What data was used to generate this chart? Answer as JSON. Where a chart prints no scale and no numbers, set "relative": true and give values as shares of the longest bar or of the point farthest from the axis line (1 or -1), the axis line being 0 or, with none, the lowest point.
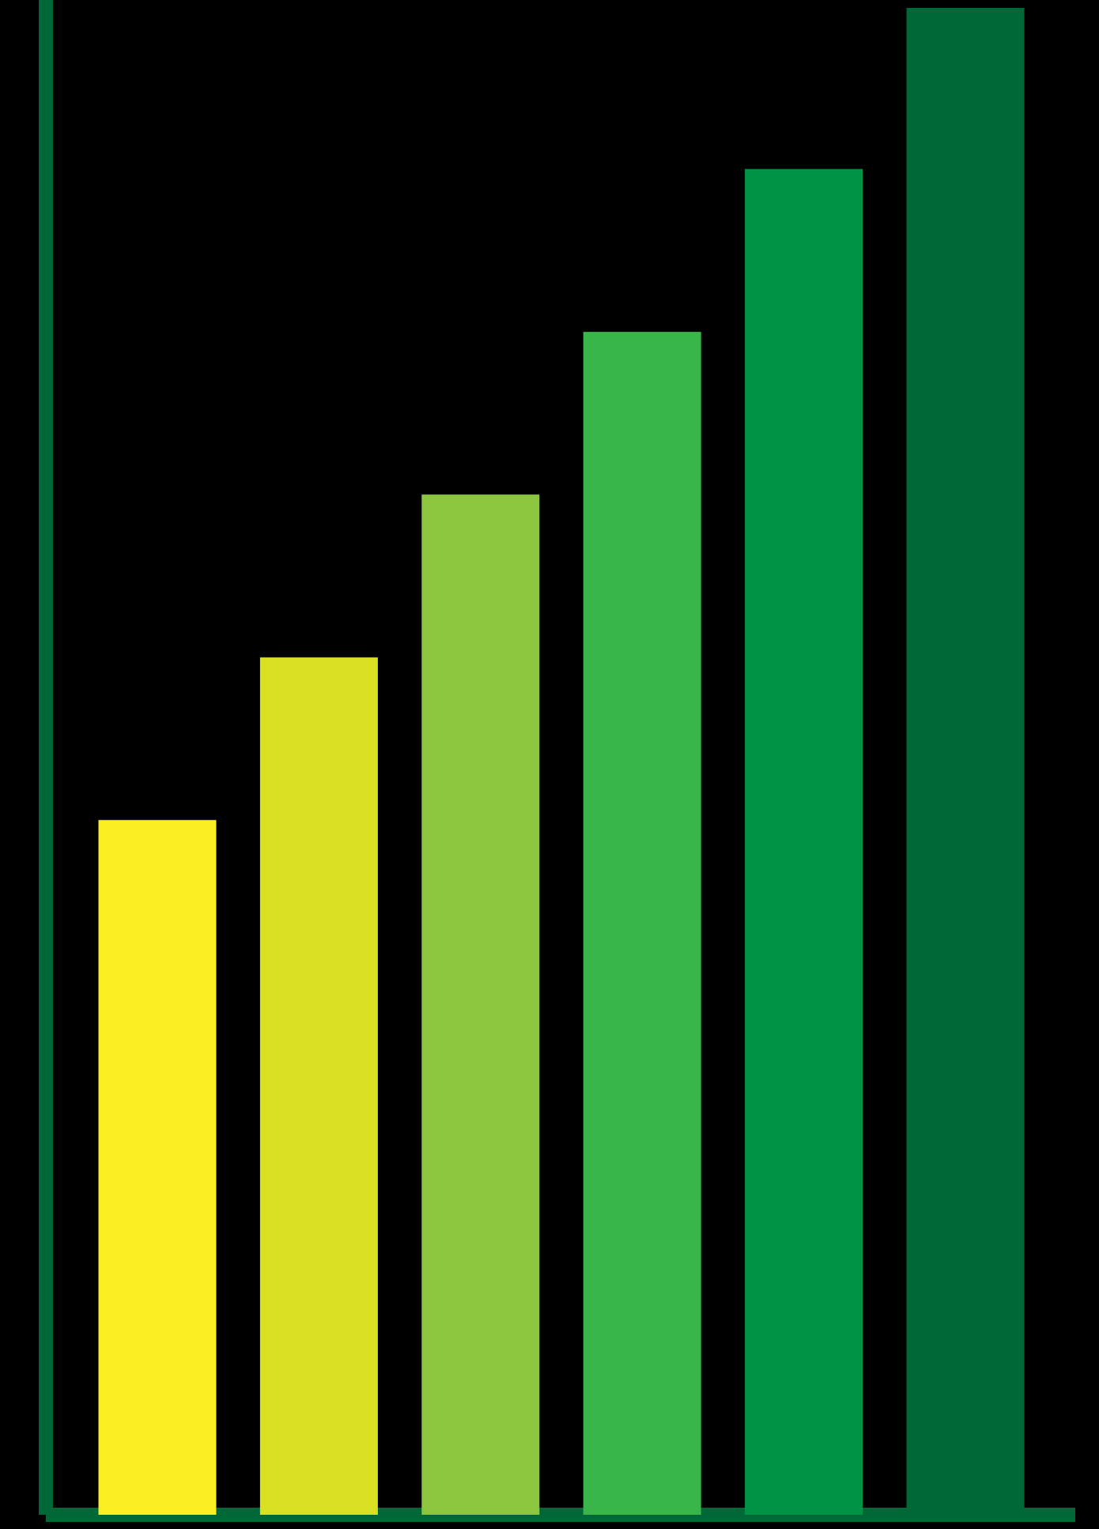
{
  "chart_data": {
    "type": "bar",
    "relative": true,
    "categories": [
      null,
      null,
      null,
      null,
      null,
      null
    ],
    "values": [
      0.461,
      0.569,
      0.677,
      0.785,
      0.893,
      1.0
    ],
    "colors": [
      "#fcee21",
      "#d9e021",
      "#8cc63f",
      "#39b54a",
      "#009245",
      "#006837"
    ]
  }
}
